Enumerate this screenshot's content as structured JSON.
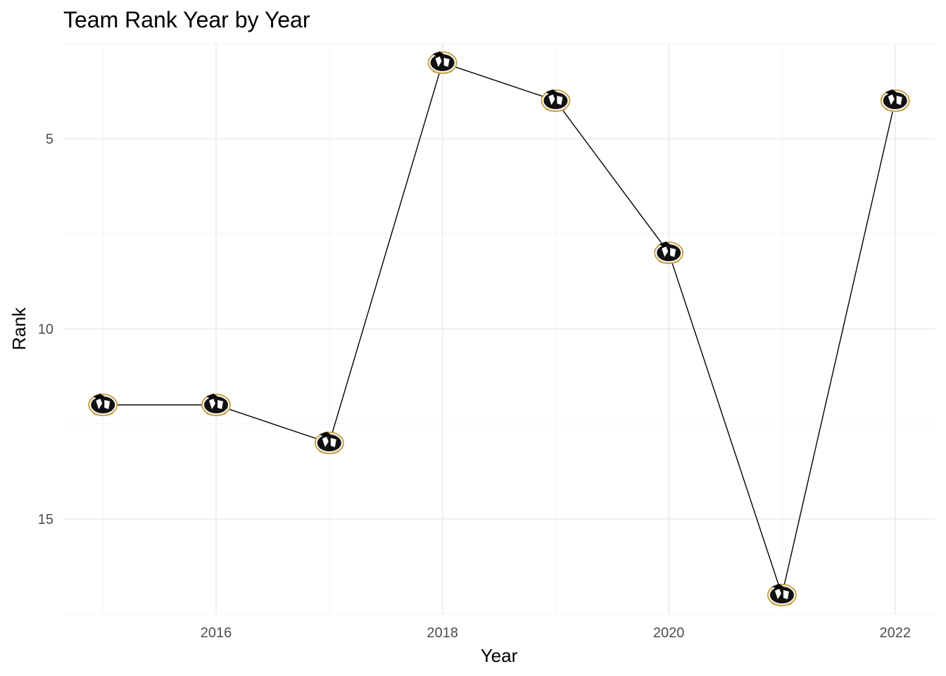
{
  "chart_data": {
    "type": "line",
    "title": "Team Rank Year by Year",
    "xlabel": "Year",
    "ylabel": "Rank",
    "x": [
      2015,
      2016,
      2017,
      2018,
      2019,
      2020,
      2021,
      2022
    ],
    "y": [
      12,
      12,
      13,
      3,
      4,
      8,
      17,
      4
    ],
    "x_ticks": [
      "2016",
      "2018",
      "2020",
      "2022"
    ],
    "y_ticks": [
      "5",
      "10",
      "15"
    ],
    "xlim": [
      2014.65,
      2022.35
    ],
    "ylim": [
      17.5,
      2.5
    ],
    "y_reversed": true,
    "grid": true,
    "marker": "club-logo-icon",
    "colors": {
      "line": "#000000",
      "grid_major": "#ebebeb",
      "grid_minor": "#f3f3f3",
      "logo_gold": "#c8a24a"
    }
  }
}
